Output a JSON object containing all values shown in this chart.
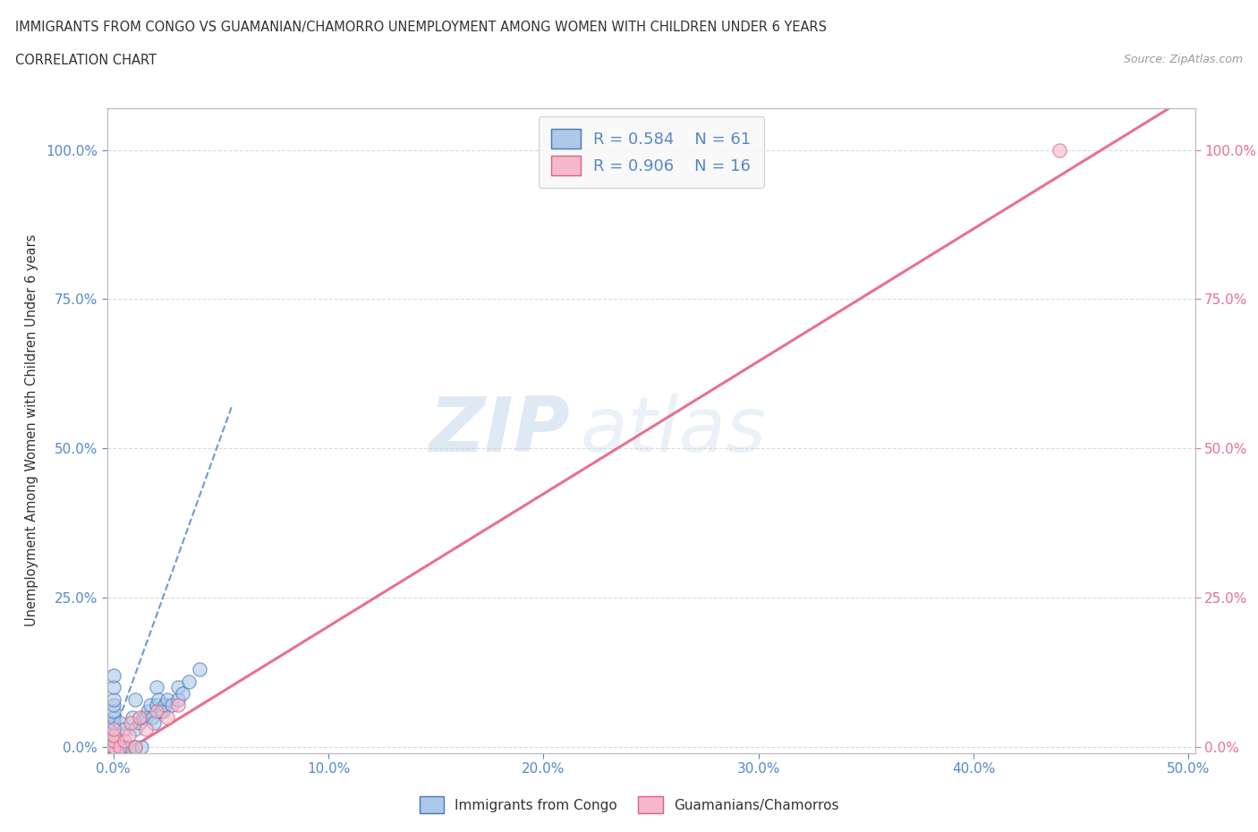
{
  "title_line1": "IMMIGRANTS FROM CONGO VS GUAMANIAN/CHAMORRO UNEMPLOYMENT AMONG WOMEN WITH CHILDREN UNDER 6 YEARS",
  "title_line2": "CORRELATION CHART",
  "source_text": "Source: ZipAtlas.com",
  "ylabel": "Unemployment Among Women with Children Under 6 years",
  "xlim": [
    -0.003,
    0.503
  ],
  "ylim": [
    -0.01,
    1.07
  ],
  "xtick_labels": [
    "0.0%",
    "10.0%",
    "20.0%",
    "30.0%",
    "40.0%",
    "50.0%"
  ],
  "xtick_values": [
    0.0,
    0.1,
    0.2,
    0.3,
    0.4,
    0.5
  ],
  "ytick_labels": [
    "0.0%",
    "25.0%",
    "50.0%",
    "75.0%",
    "100.0%"
  ],
  "ytick_values": [
    0.0,
    0.25,
    0.5,
    0.75,
    1.0
  ],
  "congo_R": 0.584,
  "congo_N": 61,
  "guam_R": 0.906,
  "guam_N": 16,
  "congo_color": "#adc8e8",
  "guam_color": "#f5b8cc",
  "congo_line_color": "#5588cc",
  "guam_line_color": "#e87090",
  "congo_edge_color": "#4477bb",
  "guam_edge_color": "#dd6080",
  "watermark_zip": "ZIP",
  "watermark_atlas": "atlas",
  "watermark_color": "#c5d8f0",
  "legend_box_color": "#f8f8f8",
  "title_color": "#333333",
  "axis_label_color": "#333333",
  "tick_color": "#5588cc",
  "right_tick_color": "#e87090",
  "grid_color": "#d8d8d8",
  "congo_scatter_x": [
    0.0,
    0.0,
    0.0,
    0.0,
    0.0,
    0.0,
    0.0,
    0.0,
    0.0,
    0.0,
    0.0,
    0.0,
    0.0,
    0.0,
    0.0,
    0.0,
    0.0,
    0.0,
    0.0,
    0.0,
    0.0,
    0.0,
    0.0,
    0.0,
    0.0,
    0.0,
    0.0,
    0.0,
    0.0,
    0.0,
    0.003,
    0.003,
    0.005,
    0.005,
    0.007,
    0.008,
    0.009,
    0.01,
    0.01,
    0.01,
    0.012,
    0.013,
    0.014,
    0.015,
    0.016,
    0.017,
    0.018,
    0.019,
    0.02,
    0.02,
    0.021,
    0.022,
    0.023,
    0.024,
    0.025,
    0.027,
    0.03,
    0.03,
    0.032,
    0.035,
    0.04
  ],
  "congo_scatter_y": [
    0.0,
    0.0,
    0.0,
    0.0,
    0.0,
    0.0,
    0.0,
    0.0,
    0.0,
    0.0,
    0.0,
    0.0,
    0.0,
    0.0,
    0.0,
    0.01,
    0.01,
    0.02,
    0.02,
    0.02,
    0.03,
    0.03,
    0.04,
    0.04,
    0.05,
    0.06,
    0.07,
    0.08,
    0.1,
    0.12,
    0.0,
    0.04,
    0.0,
    0.03,
    0.0,
    0.0,
    0.05,
    0.0,
    0.03,
    0.08,
    0.04,
    0.0,
    0.05,
    0.05,
    0.06,
    0.07,
    0.05,
    0.04,
    0.07,
    0.1,
    0.08,
    0.06,
    0.06,
    0.07,
    0.08,
    0.07,
    0.08,
    0.1,
    0.09,
    0.11,
    0.13
  ],
  "guam_scatter_x": [
    0.0,
    0.0,
    0.0,
    0.0,
    0.0,
    0.003,
    0.005,
    0.007,
    0.008,
    0.01,
    0.012,
    0.015,
    0.02,
    0.025,
    0.03,
    0.44
  ],
  "guam_scatter_y": [
    0.0,
    0.0,
    0.01,
    0.02,
    0.03,
    0.0,
    0.01,
    0.02,
    0.04,
    0.0,
    0.05,
    0.03,
    0.06,
    0.05,
    0.07,
    1.0
  ],
  "congo_trend_x1": -0.01,
  "congo_trend_x2": 0.055,
  "congo_trend_slope": 10.0,
  "congo_trend_intercept": 0.02,
  "guam_trend_x1": 0.0,
  "guam_trend_x2": 0.5,
  "guam_trend_slope": 2.22,
  "guam_trend_intercept": -0.02
}
